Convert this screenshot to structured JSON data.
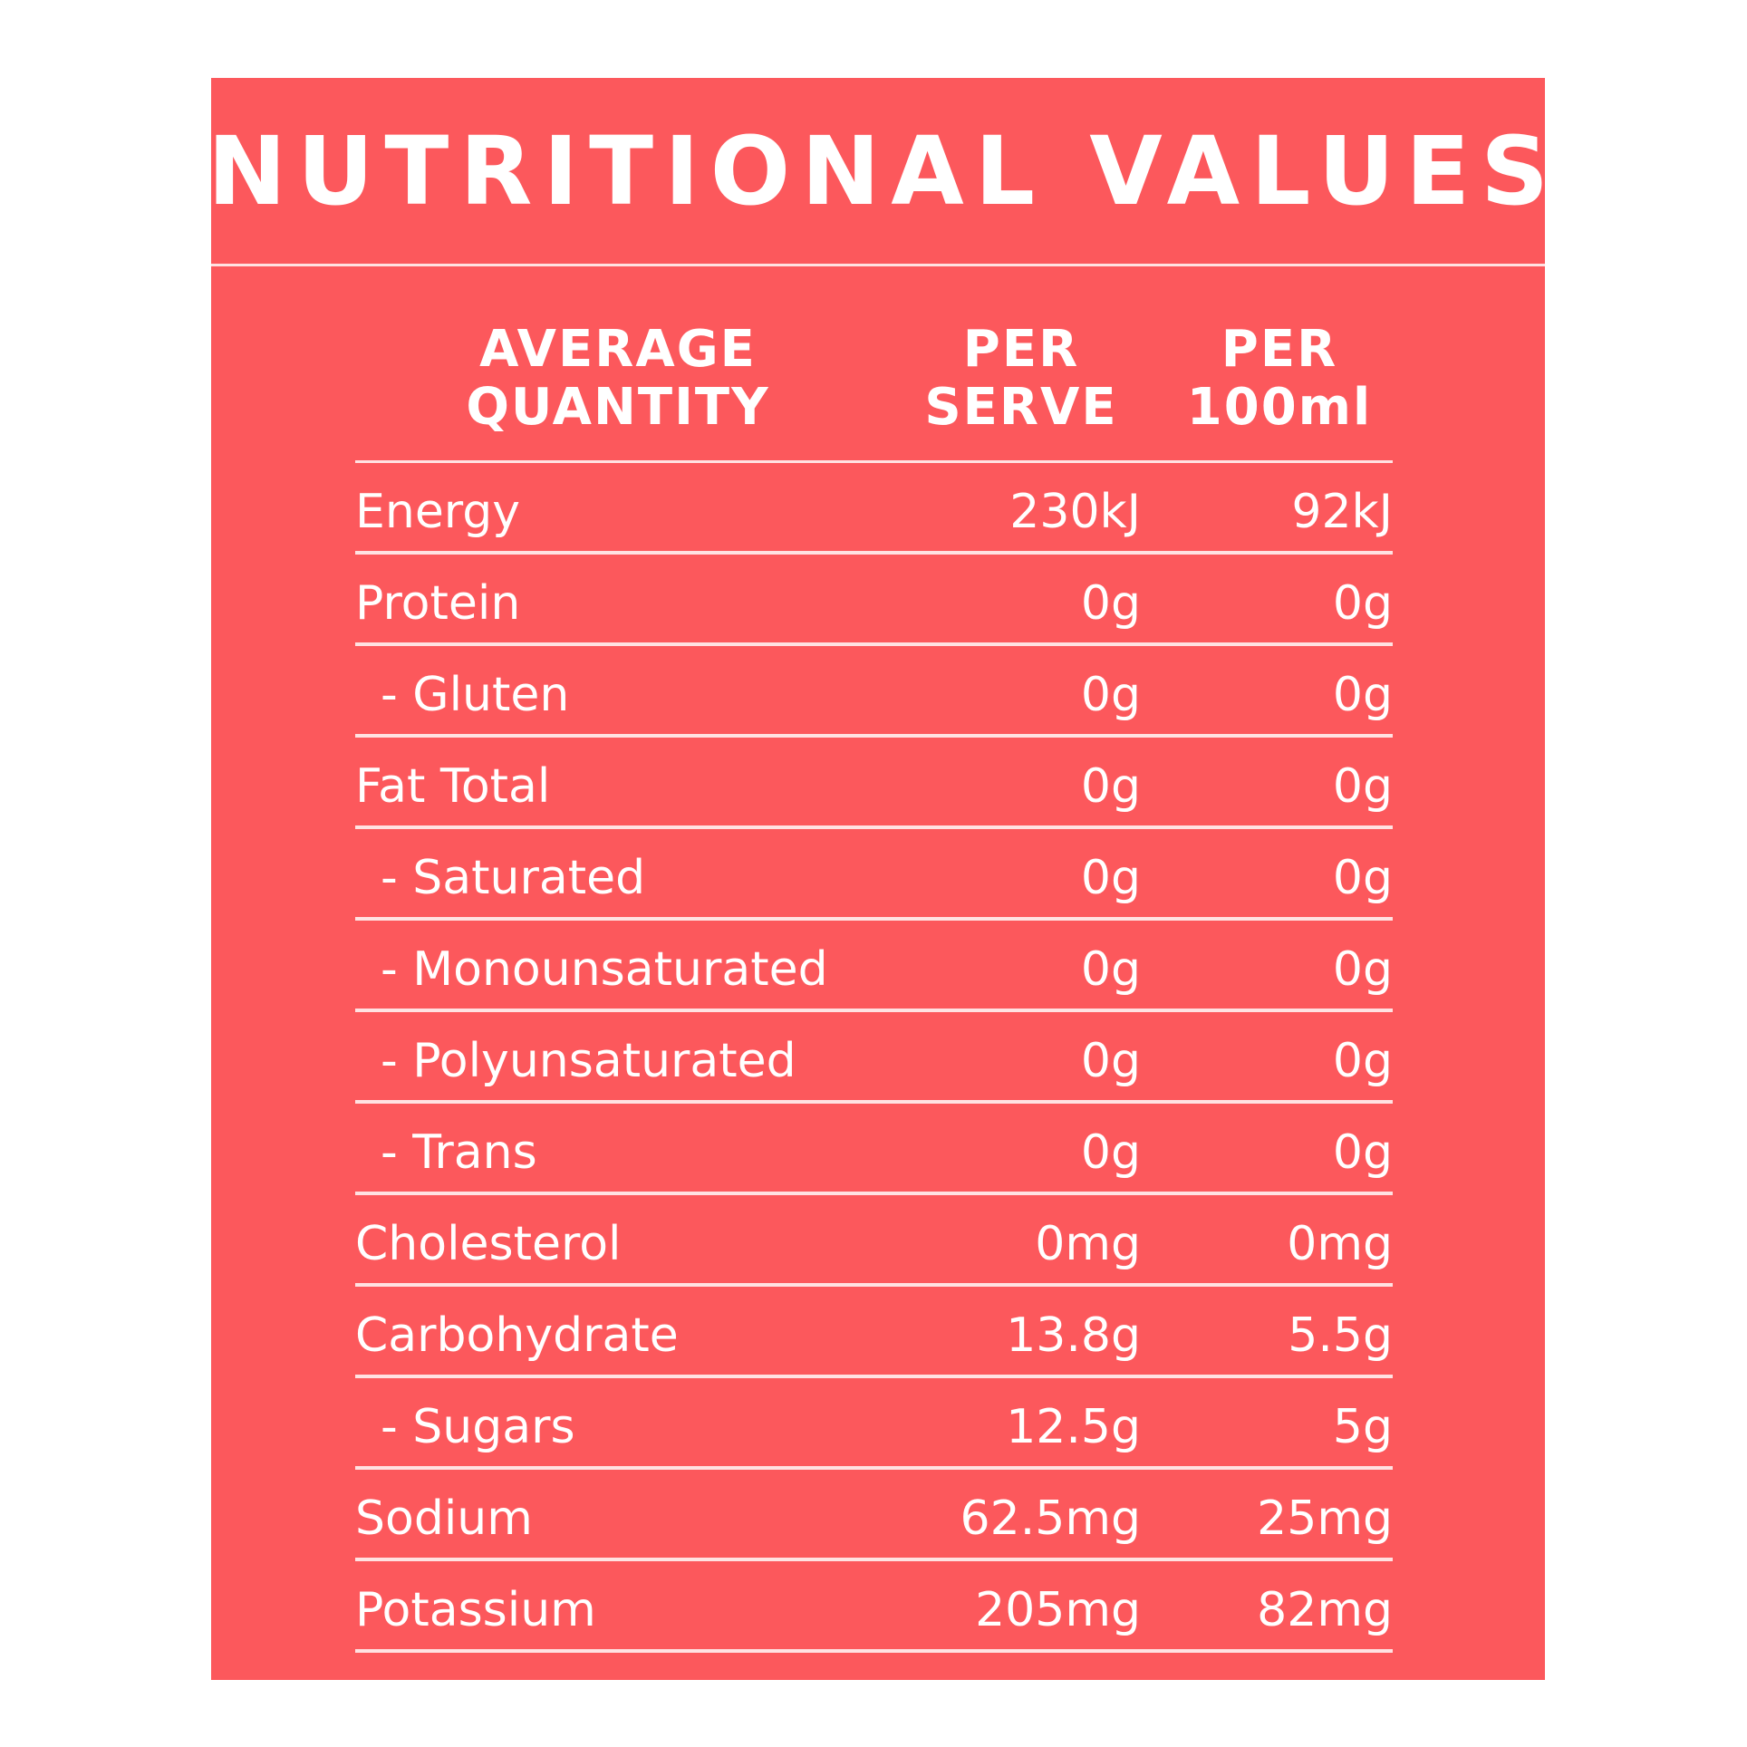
{
  "title": "NUTRITIONAL VALUES",
  "header": {
    "col1": [
      "AVERAGE",
      "QUANTITY"
    ],
    "col2": [
      "PER",
      "SERVE"
    ],
    "col3": [
      "PER",
      "100ml"
    ]
  },
  "rows": [
    {
      "name": "Energy",
      "per_serve": "230kJ",
      "per_100ml": "92kJ"
    },
    {
      "name": "Protein",
      "per_serve": "0g",
      "per_100ml": "0g"
    },
    {
      "name": "- Gluten",
      "per_serve": "0g",
      "per_100ml": "0g"
    },
    {
      "name": "Fat Total",
      "per_serve": "0g",
      "per_100ml": "0g"
    },
    {
      "name": "- Saturated",
      "per_serve": "0g",
      "per_100ml": "0g"
    },
    {
      "name": "- Monounsaturated",
      "per_serve": "0g",
      "per_100ml": "0g"
    },
    {
      "name": "- Polyunsaturated",
      "per_serve": "0g",
      "per_100ml": "0g"
    },
    {
      "name": "- Trans",
      "per_serve": "0g",
      "per_100ml": "0g"
    },
    {
      "name": "Cholesterol",
      "per_serve": "0mg",
      "per_100ml": "0mg"
    },
    {
      "name": "Carbohydrate",
      "per_serve": "13.8g",
      "per_100ml": "5.5g"
    },
    {
      "name": "- Sugars",
      "per_serve": "12.5g",
      "per_100ml": "5g"
    },
    {
      "name": "Sodium",
      "per_serve": "62.5mg",
      "per_100ml": "25mg"
    },
    {
      "name": "Potassium",
      "per_serve": "205mg",
      "per_100ml": "82mg"
    }
  ],
  "colors": {
    "panel": "#fc585c",
    "text": "#ffffff",
    "rule": "#ffe2e2"
  }
}
